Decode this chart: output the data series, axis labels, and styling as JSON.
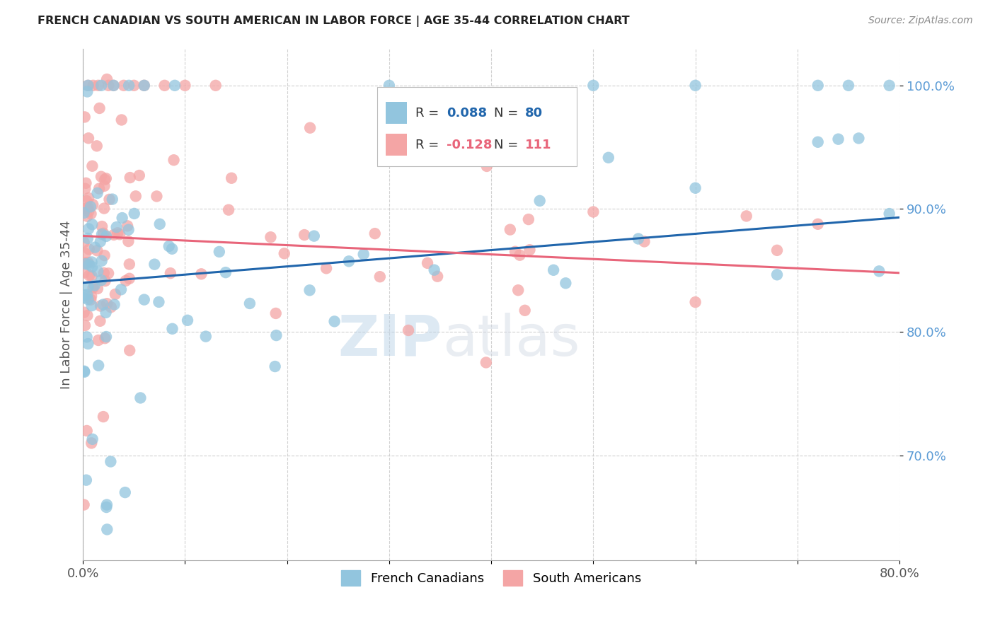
{
  "title": "FRENCH CANADIAN VS SOUTH AMERICAN IN LABOR FORCE | AGE 35-44 CORRELATION CHART",
  "source": "Source: ZipAtlas.com",
  "ylabel": "In Labor Force | Age 35-44",
  "xlim": [
    0.0,
    0.8
  ],
  "ylim": [
    0.615,
    1.03
  ],
  "r_blue": 0.088,
  "n_blue": 80,
  "r_pink": -0.128,
  "n_pink": 111,
  "blue_color": "#92c5de",
  "pink_color": "#f4a5a5",
  "blue_line_color": "#2166ac",
  "pink_line_color": "#e8657a",
  "background_color": "#ffffff",
  "watermark": "ZIPatlas",
  "blue_line_x0": 0.0,
  "blue_line_y0": 0.84,
  "blue_line_x1": 0.8,
  "blue_line_y1": 0.893,
  "pink_line_x0": 0.0,
  "pink_line_y0": 0.878,
  "pink_line_x1": 0.8,
  "pink_line_y1": 0.848
}
